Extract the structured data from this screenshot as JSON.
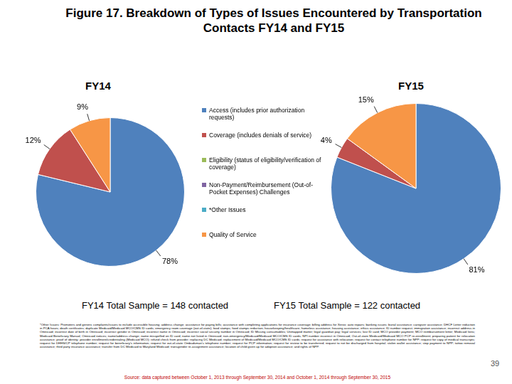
{
  "title": "Figure 17. Breakdown of Types of Issues Encountered by Transportation Contacts FY14 and FY15",
  "chart_data": [
    {
      "type": "pie",
      "title": "FY14",
      "subtitle": "FY14 Total Sample = 148 contacted",
      "categories": [
        "Access (includes prior authorization requests)",
        "Coverage (includes denials of service)",
        "Eligibility (status of eligibility/verification of coverage)",
        "Non-Payment/Reimbursement (Out-of-Pocket Expenses) Challenges",
        "*Other Issues",
        "Quality of Service"
      ],
      "values": [
        78,
        12,
        0,
        0,
        0,
        9
      ],
      "value_labels": [
        "78%",
        "12%",
        null,
        null,
        null,
        "9%"
      ],
      "colors": [
        "#4f81bd",
        "#c0504d",
        "#9bbb59",
        "#8064a2",
        "#4bacc6",
        "#f79646"
      ],
      "data_labels": true,
      "legend": "center"
    },
    {
      "type": "pie",
      "title": "FY15",
      "subtitle": "FY15 Total Sample = 122 contacted",
      "categories": [
        "Access (includes prior authorization requests)",
        "Coverage (includes denials of service)",
        "Eligibility (status of eligibility/verification of coverage)",
        "Non-Payment/Reimbursement (Out-of-Pocket Expenses) Challenges",
        "*Other Issues",
        "Quality of Service"
      ],
      "values": [
        81,
        4,
        0,
        0,
        0,
        15
      ],
      "value_labels": [
        "81%",
        "4%",
        null,
        null,
        null,
        "15%"
      ],
      "colors": [
        "#4f81bd",
        "#c0504d",
        "#9bbb59",
        "#8064a2",
        "#4bacc6",
        "#f79646"
      ],
      "data_labels": true,
      "legend": "center"
    }
  ],
  "footnote": "*Other Issues: Promoters and generic complaints/issues to include accessible housing; address change; assistance for paying bills; assistance with completing applications for insurance coverage; billing address for Xerox; auto repairs; banking issues; burial assistance; caregiver assistance; DHCF Letter reduction in PCA hours; death certificates; duplicate Medicaid/Medicaid MCO/CMS ID cards; emergency room coverage (out-of-state); food stamps; food stamps reduction; housekeeping/healthcare; homeless assistance; housing assistance; ethics assistance; ID number request; immigration assistance; incorrect address in Omnicaid; incorrect date of birth in Omnicaid; incorrect gender in Omnicaid; incorrect name in Omnicaid; incorrect social security number in Omnicaid; ID Missing consumables; Unmapped matter; legal guardian pay; legal services; lost ID card; MCO provider payment; MCO reimbursement letter; Medicaid liens; Medicaid Beneficiary Manual; Omnicaid notices; name/address change; name misspelled on ID card; name not listed in Omnicaid; non-emergency/Medicaid/Medicaid MCO/CMS ID cards; NPI number incorrect in Omnicaid; Out-of-state Medicaid/Medicaid MCO PCP re-enrollment; preparing patient for relocation assistance; proof of identity; provider enrollment/credentialing (Medicaid MCO); refund check from provider; replacing DC Medicaid; replacement of Medicaid/Medicaid MCO/CMS ID cards; request for assistance with relocation; request for contact telephone number for NPP; request for copy of medical transcripts; request for DHHS/CP telephone number; request for beneficiary's information; request for out-of-state Ombudsman's telephone number; request for PCP information; request for review to be transferred; request to not be discharged from hospital; stolen wallet assistance; stop payment to NPP; tattoo removal assistance; third party insurance assistance; transfer from DC Medicaid to Maryland Medicaid; transgender re-assignment assistance; location of child given up for adoption assistance; and rights of NPP.",
  "source": "Source: data captured between October 1, 2013 through September 30, 2014 and October 1, 2014 through September 30, 2015",
  "page_number": "39"
}
